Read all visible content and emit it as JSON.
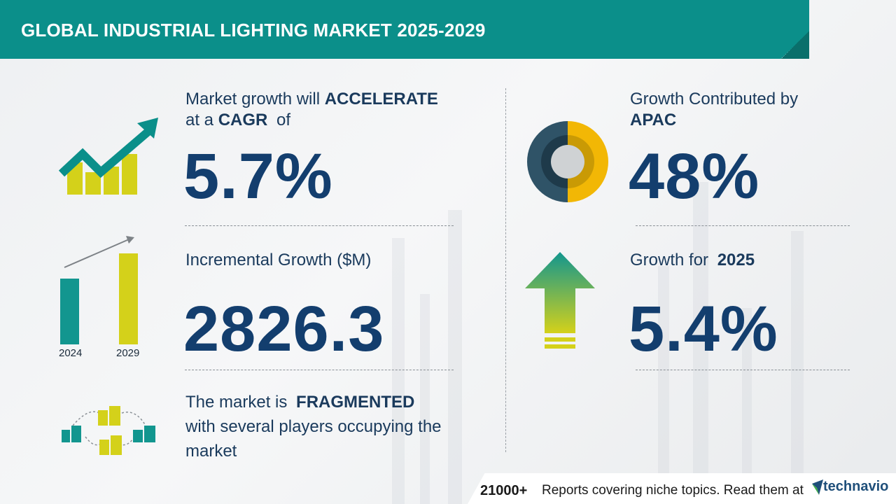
{
  "header": {
    "title": "GLOBAL INDUSTRIAL LIGHTING MARKET 2025-2029"
  },
  "cagr": {
    "line1_prefix": "Market growth will",
    "line1_emphasis": "ACCELERATE",
    "line2_prefix": "at a",
    "line2_emphasis": "CAGR",
    "line2_suffix": "of",
    "value": "5.7%"
  },
  "incremental": {
    "label": "Incremental Growth ($M)",
    "value": "2826.3",
    "bar_labels": [
      "2024",
      "2029"
    ]
  },
  "fragmented": {
    "line1_prefix": "The market is",
    "line1_emphasis": "FRAGMENTED",
    "line2": "with several players occupying the",
    "line3": "market"
  },
  "region": {
    "line1": "Growth Contributed by",
    "emphasis": "APAC",
    "value": "48%",
    "share": 0.48
  },
  "year_growth": {
    "prefix": "Growth for",
    "year": "2025",
    "value": "5.4%"
  },
  "footer": {
    "count": "21000+",
    "text": "Reports covering niche topics. Read them at",
    "brand": "technavio"
  },
  "colors": {
    "teal": "#0b8f8a",
    "navy": "#133e6e",
    "yellow_green": "#d4d11a",
    "gold": "#f2b705",
    "slate": "#2f5367"
  }
}
